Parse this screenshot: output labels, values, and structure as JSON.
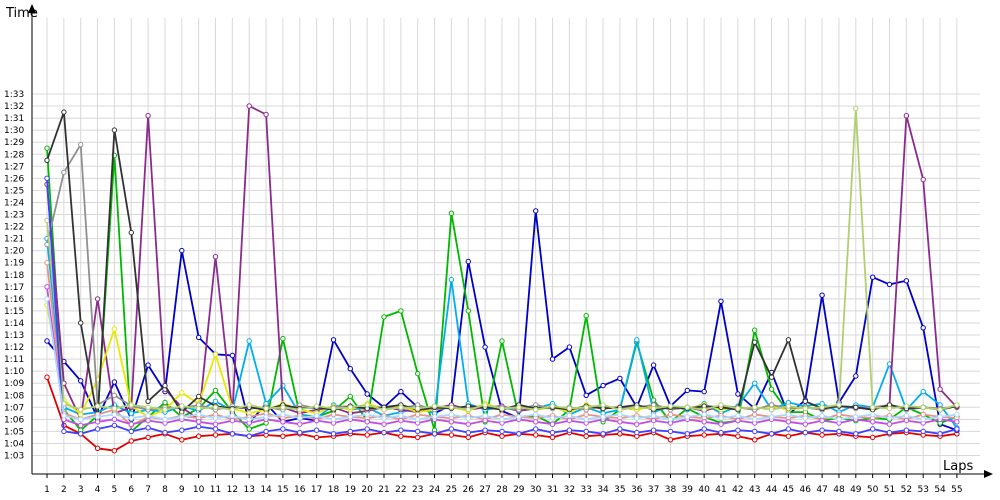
{
  "chart_data": {
    "type": "line",
    "title": "",
    "xlabel": "Laps",
    "ylabel": "Time",
    "x": [
      1,
      2,
      3,
      4,
      5,
      6,
      7,
      8,
      9,
      10,
      11,
      12,
      13,
      14,
      15,
      16,
      17,
      18,
      19,
      20,
      21,
      22,
      23,
      24,
      25,
      26,
      27,
      28,
      29,
      30,
      31,
      32,
      33,
      34,
      35,
      36,
      37,
      38,
      39,
      40,
      41,
      42,
      43,
      44,
      45,
      46,
      47,
      48,
      49,
      50,
      51,
      52,
      53,
      54,
      55
    ],
    "xlim": [
      1,
      55
    ],
    "ylim_seconds": [
      62,
      94
    ],
    "y_ticks": [
      "1:03",
      "1:04",
      "1:05",
      "1:06",
      "1:07",
      "1:08",
      "1:09",
      "1:10",
      "1:11",
      "1:12",
      "1:13",
      "1:14",
      "1:15",
      "1:16",
      "1:17",
      "1:18",
      "1:19",
      "1:20",
      "1:21",
      "1:22",
      "1:23",
      "1:24",
      "1:25",
      "1:26",
      "1:27",
      "1:28",
      "1:29",
      "1:30",
      "1:31",
      "1:32",
      "1:33"
    ],
    "y_tick_seconds": [
      63,
      64,
      65,
      66,
      67,
      68,
      69,
      70,
      71,
      72,
      73,
      74,
      75,
      76,
      77,
      78,
      79,
      80,
      81,
      82,
      83,
      84,
      85,
      86,
      87,
      88,
      89,
      90,
      91,
      92,
      93
    ],
    "grid": true,
    "legend": "none",
    "series": [
      {
        "color": "#E00000",
        "values": [
          69.5,
          65.5,
          64.8,
          63.6,
          63.4,
          64.2,
          64.5,
          64.8,
          64.3,
          64.6,
          64.7,
          64.8,
          64.6,
          64.7,
          64.6,
          64.8,
          64.5,
          64.6,
          64.8,
          64.7,
          64.9,
          64.6,
          64.5,
          64.8,
          64.7,
          64.5,
          64.9,
          64.6,
          64.8,
          64.7,
          64.5,
          64.9,
          64.6,
          64.7,
          64.8,
          64.6,
          64.9,
          64.3,
          64.6,
          64.7,
          64.8,
          64.6,
          64.3,
          64.8,
          64.6,
          64.9,
          64.7,
          64.8,
          64.6,
          64.5,
          64.8,
          64.9,
          64.7,
          64.6,
          64.8
        ]
      },
      {
        "color": "#0000C8",
        "values": [
          72.5,
          70.8,
          69.2,
          66.1,
          69.1,
          66.0,
          70.5,
          68.3,
          80.0,
          72.8,
          71.4,
          71.3,
          65.7,
          67.3,
          65.8,
          66.1,
          65.9,
          72.6,
          70.2,
          68.1,
          67.0,
          68.3,
          67.0,
          66.5,
          67.2,
          79.1,
          72.0,
          66.7,
          66.1,
          83.3,
          71.0,
          72.0,
          68.0,
          68.8,
          69.4,
          67.0,
          70.5,
          67.1,
          68.4,
          68.3,
          75.8,
          68.1,
          66.9,
          69.9,
          66.4,
          67.6,
          76.3,
          67.4,
          69.6,
          77.8,
          77.2,
          77.5,
          73.6,
          65.6,
          65.1
        ]
      },
      {
        "color": "#00B800",
        "values": [
          88.5,
          66.8,
          65.1,
          66.3,
          87.9,
          65.0,
          66.2,
          67.4,
          66.2,
          66.9,
          68.4,
          66.6,
          65.2,
          65.7,
          72.7,
          66.4,
          66.2,
          66.7,
          67.9,
          65.9,
          74.5,
          75.0,
          69.8,
          65.1,
          83.1,
          75.0,
          65.8,
          72.5,
          66.2,
          66.3,
          65.6,
          66.8,
          74.6,
          65.8,
          66.8,
          72.4,
          67.6,
          65.8,
          66.9,
          66.2,
          65.7,
          65.9,
          73.4,
          68.5,
          66.6,
          66.6,
          65.9,
          66.1,
          65.9,
          66.1,
          66.0,
          67.0,
          66.4,
          65.7,
          66.2
        ]
      },
      {
        "color": "#00AEEF",
        "values": [
          81.0,
          67.0,
          66.4,
          66.6,
          67.2,
          66.5,
          66.8,
          66.6,
          67.1,
          66.7,
          67.5,
          66.7,
          72.5,
          67.3,
          68.8,
          66.4,
          66.1,
          67.2,
          66.8,
          67.0,
          66.3,
          66.6,
          66.9,
          66.5,
          77.6,
          67.3,
          66.8,
          67.0,
          66.7,
          66.9,
          67.3,
          66.4,
          67.0,
          66.5,
          66.8,
          72.6,
          66.6,
          67.1,
          66.8,
          67.3,
          66.5,
          67.1,
          69.0,
          66.8,
          67.4,
          67.1,
          67.3,
          66.6,
          67.2,
          67.0,
          70.6,
          66.8,
          68.3,
          67.2,
          65.3
        ]
      },
      {
        "color": "#8B2C8C",
        "values": [
          85.5,
          69.0,
          66.0,
          76.0,
          66.5,
          67.0,
          91.2,
          68.5,
          67.0,
          66.0,
          79.5,
          66.5,
          92.0,
          91.3,
          67.0,
          66.5,
          66.8,
          67.0,
          66.5,
          66.7,
          67.0,
          66.8,
          66.6,
          66.9,
          67.2,
          66.8,
          67.0,
          67.1,
          66.7,
          66.9,
          67.0,
          66.8,
          67.1,
          66.9,
          67.0,
          66.8,
          67.2,
          66.9,
          67.0,
          66.7,
          67.1,
          67.0,
          66.8,
          67.2,
          66.9,
          67.0,
          66.8,
          67.1,
          67.0,
          66.9,
          67.2,
          91.2,
          85.9,
          68.5,
          67.0
        ]
      },
      {
        "color": "#E8E800",
        "values": [
          75.5,
          67.6,
          66.4,
          69.3,
          73.5,
          67.1,
          66.2,
          66.8,
          68.2,
          67.3,
          71.4,
          66.9,
          66.5,
          66.8,
          67.3,
          66.8,
          66.5,
          67.1,
          66.8,
          67.3,
          66.9,
          67.1,
          66.6,
          66.8,
          67.0,
          66.7,
          67.3,
          66.9,
          67.1,
          66.8,
          67.0,
          66.6,
          67.2,
          66.9,
          67.0,
          66.8,
          67.1,
          67.0,
          66.9,
          67.2,
          66.8,
          67.0,
          66.9,
          67.1,
          66.8,
          67.0,
          66.9,
          67.1,
          67.0,
          66.8,
          67.2,
          66.9,
          67.0,
          66.8,
          67.1
        ]
      },
      {
        "color": "#909090",
        "values": [
          80.5,
          86.5,
          88.8,
          67.2,
          68.0,
          67.1,
          66.8,
          67.0,
          66.9,
          67.2,
          66.8,
          67.1,
          66.9,
          67.0,
          66.8,
          67.2,
          66.9,
          67.0,
          67.1,
          66.8,
          67.0,
          66.9,
          67.2,
          66.8,
          67.0,
          66.9,
          67.1,
          67.0,
          66.8,
          67.2,
          66.9,
          67.0,
          66.8,
          67.1,
          66.9,
          67.0,
          67.2,
          66.8,
          67.0,
          66.9,
          67.1,
          67.0,
          66.8,
          67.2,
          66.9,
          67.0,
          66.8,
          67.1,
          66.9,
          67.0,
          67.2,
          66.8,
          67.0,
          66.9,
          67.1
        ]
      },
      {
        "color": "#333333",
        "values": [
          87.5,
          91.5,
          74.0,
          66.0,
          90.0,
          81.5,
          67.5,
          68.8,
          66.6,
          67.9,
          67.1,
          66.9,
          67.0,
          66.8,
          67.2,
          66.9,
          67.0,
          66.8,
          67.1,
          66.9,
          67.0,
          67.2,
          66.8,
          67.0,
          66.9,
          67.1,
          67.0,
          66.8,
          67.2,
          66.9,
          67.0,
          66.8,
          67.1,
          66.9,
          67.0,
          67.2,
          66.8,
          67.0,
          66.9,
          67.1,
          67.0,
          66.8,
          72.4,
          69.5,
          72.6,
          67.5,
          66.9,
          67.1,
          67.0,
          66.8,
          67.2,
          66.9,
          67.0,
          66.8,
          67.1
        ]
      },
      {
        "color": "#E8928C",
        "values": [
          79.0,
          66.5,
          66.0,
          66.4,
          66.8,
          65.5,
          66.2,
          66.0,
          66.3,
          66.1,
          66.4,
          66.0,
          66.2,
          66.5,
          66.1,
          66.3,
          66.0,
          66.4,
          66.2,
          66.1,
          66.3,
          66.0,
          66.4,
          66.2,
          66.1,
          66.3,
          66.0,
          66.4,
          66.2,
          66.1,
          66.3,
          66.0,
          66.4,
          66.2,
          66.1,
          66.3,
          66.0,
          66.4,
          66.2,
          66.1,
          66.3,
          66.0,
          66.4,
          66.2,
          66.1,
          66.3,
          66.0,
          66.4,
          66.2,
          66.1,
          66.3,
          66.0,
          66.4,
          66.2,
          66.1
        ]
      },
      {
        "color": "#B0D070",
        "values": [
          82.5,
          67.3,
          66.8,
          67.1,
          66.9,
          67.2,
          67.0,
          66.8,
          67.1,
          66.9,
          67.0,
          66.8,
          67.2,
          66.9,
          67.0,
          66.8,
          67.1,
          66.9,
          67.0,
          67.2,
          66.8,
          67.0,
          66.9,
          67.1,
          67.0,
          66.8,
          67.2,
          66.9,
          67.0,
          66.8,
          67.1,
          66.9,
          67.0,
          67.2,
          66.8,
          67.0,
          66.9,
          67.1,
          67.0,
          66.8,
          67.2,
          66.9,
          67.0,
          66.8,
          67.1,
          66.9,
          67.0,
          67.2,
          91.8,
          67.0,
          66.9,
          67.1,
          67.0,
          66.8,
          67.2
        ]
      },
      {
        "color": "#4040FF",
        "values": [
          86.0,
          65.0,
          64.8,
          65.2,
          65.5,
          65.0,
          65.3,
          64.9,
          65.1,
          65.4,
          65.2,
          64.8,
          64.6,
          65.0,
          65.2,
          64.9,
          65.1,
          64.8,
          65.0,
          65.2,
          64.9,
          65.1,
          65.0,
          64.8,
          65.2,
          64.9,
          65.1,
          65.0,
          64.8,
          65.2,
          64.9,
          65.1,
          65.0,
          64.8,
          65.2,
          64.9,
          65.1,
          65.0,
          64.8,
          65.2,
          64.9,
          65.1,
          65.0,
          64.8,
          65.2,
          64.9,
          65.1,
          65.0,
          64.8,
          65.2,
          64.9,
          65.1,
          65.0,
          64.8,
          65.2
        ]
      },
      {
        "color": "#C050E0",
        "values": [
          77.0,
          66.0,
          65.5,
          65.8,
          66.0,
          65.6,
          65.9,
          65.7,
          66.0,
          65.8,
          65.6,
          65.9,
          65.7,
          66.0,
          65.8,
          65.6,
          65.9,
          65.7,
          66.0,
          65.8,
          65.6,
          65.9,
          65.7,
          66.0,
          65.8,
          65.6,
          65.9,
          65.7,
          66.0,
          65.8,
          65.6,
          65.9,
          65.7,
          66.0,
          65.8,
          65.6,
          65.9,
          65.7,
          66.0,
          65.8,
          65.6,
          65.9,
          65.7,
          66.0,
          65.8,
          65.6,
          65.9,
          65.7,
          66.0,
          65.8,
          65.6,
          65.9,
          65.7,
          66.0,
          65.8
        ]
      },
      {
        "color": "#A8D8FF",
        "values": [
          76.0,
          66.3,
          66.0,
          66.2,
          66.4,
          66.1,
          66.3,
          66.0,
          66.2,
          66.4,
          66.1,
          66.3,
          66.0,
          66.2,
          66.4,
          66.1,
          66.3,
          66.0,
          66.2,
          66.4,
          66.1,
          66.3,
          66.0,
          66.2,
          66.4,
          66.1,
          66.3,
          66.0,
          66.2,
          66.4,
          66.1,
          66.3,
          66.0,
          66.2,
          66.4,
          66.1,
          66.3,
          66.0,
          66.2,
          66.4,
          66.1,
          66.3,
          66.0,
          66.2,
          66.4,
          66.1,
          66.3,
          66.0,
          66.2,
          66.4,
          66.1,
          66.3,
          66.0,
          66.2,
          66.4
        ]
      }
    ]
  }
}
